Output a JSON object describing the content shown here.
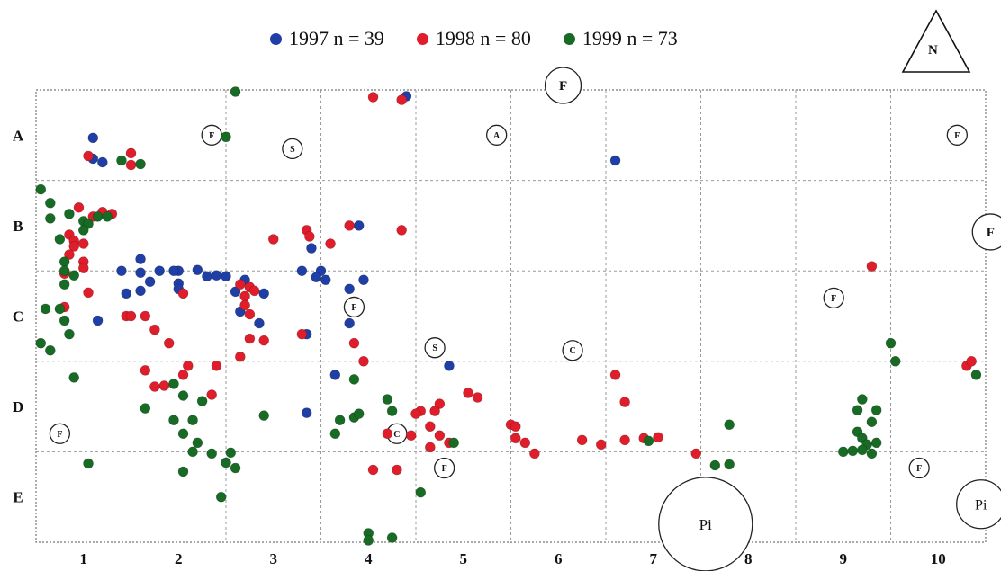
{
  "north_arrow": {
    "label": "N"
  },
  "chart_data": {
    "type": "scatter",
    "title": "",
    "xlabel": "",
    "ylabel": "",
    "grid": true,
    "legend_position": "top",
    "xlim": [
      0.5,
      10.5
    ],
    "ylim": [
      0,
      5
    ],
    "x_ticks": [
      {
        "label": "1",
        "value": 1
      },
      {
        "label": "2",
        "value": 2
      },
      {
        "label": "3",
        "value": 3
      },
      {
        "label": "4",
        "value": 4
      },
      {
        "label": "5",
        "value": 5
      },
      {
        "label": "6",
        "value": 6
      },
      {
        "label": "7",
        "value": 7
      },
      {
        "label": "8",
        "value": 8
      },
      {
        "label": "9",
        "value": 9
      },
      {
        "label": "10",
        "value": 10
      }
    ],
    "y_ticks": [
      {
        "label": "A",
        "value": 4.5
      },
      {
        "label": "B",
        "value": 3.5
      },
      {
        "label": "C",
        "value": 2.5
      },
      {
        "label": "D",
        "value": 1.5
      },
      {
        "label": "E",
        "value": 0.5
      }
    ],
    "series": [
      {
        "name": "1997",
        "legend_label": "1997  n = 39",
        "color": "#1f3fa6",
        "points": [
          [
            1.1,
            4.47
          ],
          [
            4.4,
            4.93
          ],
          [
            1.1,
            4.24
          ],
          [
            1.2,
            4.2
          ],
          [
            6.6,
            4.22
          ],
          [
            3.9,
            3.5
          ],
          [
            3.4,
            3.25
          ],
          [
            1.6,
            3.13
          ],
          [
            1.4,
            3.0
          ],
          [
            1.6,
            2.98
          ],
          [
            1.8,
            3.0
          ],
          [
            2,
            3.0
          ],
          [
            2.2,
            3.01
          ],
          [
            2.3,
            2.94
          ],
          [
            2.5,
            2.94
          ],
          [
            2.7,
            2.9
          ],
          [
            3.3,
            3.0
          ],
          [
            3.5,
            3.0
          ],
          [
            3.45,
            2.93
          ],
          [
            3.55,
            2.9
          ],
          [
            3.95,
            2.9
          ],
          [
            3.8,
            2.8
          ],
          [
            1.7,
            2.88
          ],
          [
            2,
            2.86
          ],
          [
            1.45,
            2.75
          ],
          [
            1.6,
            2.78
          ],
          [
            2,
            2.8
          ],
          [
            2.6,
            2.77
          ],
          [
            2.9,
            2.75
          ],
          [
            1.15,
            2.45
          ],
          [
            2.65,
            2.55
          ],
          [
            2.85,
            2.42
          ],
          [
            3.35,
            2.3
          ],
          [
            3.8,
            2.42
          ],
          [
            4.85,
            1.95
          ],
          [
            3.65,
            1.85
          ],
          [
            3.35,
            1.43
          ],
          [
            1.95,
            3.0
          ],
          [
            2.4,
            2.95
          ]
        ]
      },
      {
        "name": "1998",
        "legend_label": "1998  n = 80",
        "color": "#e01d2a",
        "points": [
          [
            4.05,
            4.92
          ],
          [
            4.35,
            4.89
          ],
          [
            1.05,
            4.27
          ],
          [
            1.5,
            4.3
          ],
          [
            1.5,
            4.17
          ],
          [
            0.95,
            3.7
          ],
          [
            1.1,
            3.6
          ],
          [
            1.2,
            3.65
          ],
          [
            1.3,
            3.63
          ],
          [
            0.85,
            3.4
          ],
          [
            0.9,
            3.33
          ],
          [
            1.0,
            3.3
          ],
          [
            0.9,
            3.27
          ],
          [
            0.85,
            3.18
          ],
          [
            1.0,
            3.1
          ],
          [
            1.0,
            3.03
          ],
          [
            0.8,
            2.97
          ],
          [
            1.05,
            2.76
          ],
          [
            0.8,
            2.6
          ],
          [
            3.0,
            3.35
          ],
          [
            3.35,
            3.45
          ],
          [
            3.38,
            3.38
          ],
          [
            3.6,
            3.3
          ],
          [
            3.8,
            3.5
          ],
          [
            4.35,
            3.45
          ],
          [
            9.3,
            3.05
          ],
          [
            1.45,
            2.5
          ],
          [
            1.5,
            2.5
          ],
          [
            1.65,
            2.5
          ],
          [
            1.75,
            2.35
          ],
          [
            1.9,
            2.2
          ],
          [
            2.05,
            2.75
          ],
          [
            2.65,
            2.85
          ],
          [
            2.75,
            2.82
          ],
          [
            2.8,
            2.78
          ],
          [
            2.7,
            2.72
          ],
          [
            2.7,
            2.62
          ],
          [
            2.75,
            2.52
          ],
          [
            2.75,
            2.25
          ],
          [
            2.9,
            2.23
          ],
          [
            3.3,
            2.3
          ],
          [
            3.85,
            2.2
          ],
          [
            2.65,
            2.05
          ],
          [
            2.4,
            1.95
          ],
          [
            2.1,
            1.95
          ],
          [
            1.65,
            1.9
          ],
          [
            2.05,
            1.85
          ],
          [
            1.85,
            1.73
          ],
          [
            1.75,
            1.72
          ],
          [
            2.35,
            1.63
          ],
          [
            3.95,
            2.0
          ],
          [
            5.05,
            1.65
          ],
          [
            5.15,
            1.6
          ],
          [
            4.75,
            1.53
          ],
          [
            4.7,
            1.45
          ],
          [
            4.55,
            1.45
          ],
          [
            4.5,
            1.42
          ],
          [
            4.65,
            1.28
          ],
          [
            4.2,
            1.2
          ],
          [
            4.45,
            1.18
          ],
          [
            4.75,
            1.18
          ],
          [
            4.65,
            1.05
          ],
          [
            4.85,
            1.1
          ],
          [
            5.5,
            1.3
          ],
          [
            5.55,
            1.28
          ],
          [
            5.55,
            1.15
          ],
          [
            5.65,
            1.1
          ],
          [
            5.75,
            0.98
          ],
          [
            6.25,
            1.13
          ],
          [
            6.45,
            1.08
          ],
          [
            6.6,
            1.85
          ],
          [
            6.7,
            1.55
          ],
          [
            6.7,
            1.13
          ],
          [
            6.9,
            1.15
          ],
          [
            7.05,
            1.16
          ],
          [
            7.45,
            0.98
          ],
          [
            10.3,
            1.95
          ],
          [
            10.35,
            2.0
          ],
          [
            4.05,
            0.8
          ],
          [
            4.3,
            0.8
          ]
        ]
      },
      {
        "name": "1999",
        "legend_label": "1999  n = 73",
        "color": "#176b24",
        "points": [
          [
            2.6,
            4.98
          ],
          [
            2.5,
            4.48
          ],
          [
            1.4,
            4.22
          ],
          [
            1.6,
            4.18
          ],
          [
            0.55,
            3.9
          ],
          [
            0.65,
            3.75
          ],
          [
            0.65,
            3.58
          ],
          [
            1.0,
            3.55
          ],
          [
            1.05,
            3.52
          ],
          [
            1.15,
            3.6
          ],
          [
            1.25,
            3.6
          ],
          [
            0.85,
            3.63
          ],
          [
            1.0,
            3.45
          ],
          [
            0.75,
            3.35
          ],
          [
            0.8,
            3.1
          ],
          [
            0.8,
            3.0
          ],
          [
            0.9,
            2.95
          ],
          [
            0.8,
            2.85
          ],
          [
            0.6,
            2.58
          ],
          [
            0.75,
            2.58
          ],
          [
            0.8,
            2.45
          ],
          [
            0.85,
            2.3
          ],
          [
            0.55,
            2.2
          ],
          [
            0.65,
            2.12
          ],
          [
            0.9,
            1.82
          ],
          [
            3.85,
            1.8
          ],
          [
            1.65,
            1.48
          ],
          [
            2.05,
            1.62
          ],
          [
            2.25,
            1.56
          ],
          [
            1.95,
            1.35
          ],
          [
            2.15,
            1.35
          ],
          [
            2.05,
            1.2
          ],
          [
            2.2,
            1.1
          ],
          [
            2.15,
            1.0
          ],
          [
            2.35,
            0.98
          ],
          [
            2.55,
            0.99
          ],
          [
            2.5,
            0.88
          ],
          [
            2.6,
            0.82
          ],
          [
            2.05,
            0.78
          ],
          [
            2.45,
            0.5
          ],
          [
            1.05,
            0.87
          ],
          [
            4.2,
            1.58
          ],
          [
            4.25,
            1.45
          ],
          [
            3.7,
            1.35
          ],
          [
            3.85,
            1.38
          ],
          [
            3.9,
            1.42
          ],
          [
            3.65,
            1.2
          ],
          [
            4.9,
            1.1
          ],
          [
            4.55,
            0.55
          ],
          [
            6.95,
            1.12
          ],
          [
            7.8,
            1.3
          ],
          [
            7.65,
            0.85
          ],
          [
            7.8,
            0.86
          ],
          [
            9.2,
            1.58
          ],
          [
            9.15,
            1.46
          ],
          [
            9.35,
            1.46
          ],
          [
            9.3,
            1.33
          ],
          [
            9.15,
            1.22
          ],
          [
            9.2,
            1.15
          ],
          [
            9.25,
            1.08
          ],
          [
            9.35,
            1.1
          ],
          [
            9.0,
            1.0
          ],
          [
            9.1,
            1.01
          ],
          [
            9.2,
            1.02
          ],
          [
            9.3,
            0.98
          ],
          [
            9.5,
            2.2
          ],
          [
            9.55,
            2.0
          ],
          [
            10.4,
            1.85
          ],
          [
            4.0,
            0.1
          ],
          [
            4.0,
            0.02
          ],
          [
            4.25,
            0.05
          ],
          [
            1.95,
            1.75
          ],
          [
            2.9,
            1.4
          ]
        ]
      }
    ],
    "annotations": [
      {
        "text": "F",
        "x": 2.35,
        "y": 4.5,
        "size": "small"
      },
      {
        "text": "S",
        "x": 3.2,
        "y": 4.35,
        "size": "small"
      },
      {
        "text": "A",
        "x": 5.35,
        "y": 4.5,
        "size": "small"
      },
      {
        "text": "F",
        "x": 6.05,
        "y": 5.05,
        "size": "large"
      },
      {
        "text": "F",
        "x": 10.2,
        "y": 4.5,
        "size": "small"
      },
      {
        "text": "F",
        "x": 10.55,
        "y": 3.43,
        "size": "large"
      },
      {
        "text": "F",
        "x": 3.85,
        "y": 2.6,
        "size": "small"
      },
      {
        "text": "F",
        "x": 8.9,
        "y": 2.7,
        "size": "small"
      },
      {
        "text": "S",
        "x": 4.7,
        "y": 2.15,
        "size": "small"
      },
      {
        "text": "C",
        "x": 6.15,
        "y": 2.12,
        "size": "small"
      },
      {
        "text": "F",
        "x": 0.75,
        "y": 1.2,
        "size": "small"
      },
      {
        "text": "C",
        "x": 4.3,
        "y": 1.2,
        "size": "small"
      },
      {
        "text": "F",
        "x": 4.8,
        "y": 0.82,
        "size": "small"
      },
      {
        "text": "F",
        "x": 9.8,
        "y": 0.82,
        "size": "small"
      },
      {
        "text": "Pi",
        "x": 7.55,
        "y": 0.2,
        "size": "huge"
      },
      {
        "text": "Pi",
        "x": 10.45,
        "y": 0.42,
        "size": "xlarge"
      }
    ]
  }
}
